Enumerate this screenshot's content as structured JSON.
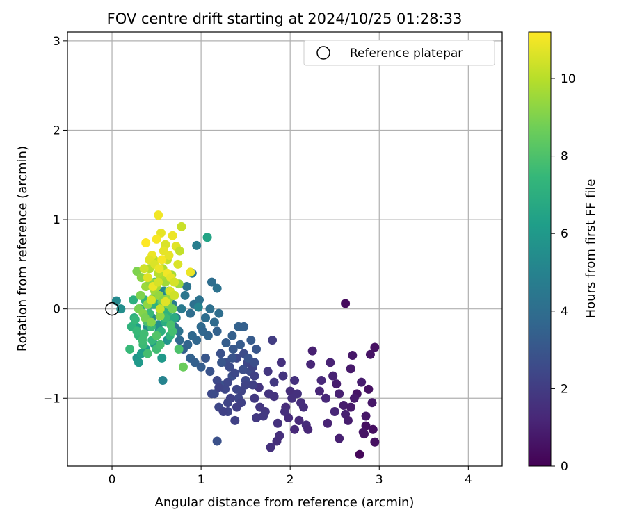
{
  "chart_data": {
    "type": "scatter",
    "title": "FOV centre drift starting at 2024/10/25 01:28:33",
    "xlabel": "Angular distance from reference (arcmin)",
    "ylabel": "Rotation from reference (arcmin)",
    "xlim": [
      -0.5,
      4.38
    ],
    "ylim": [
      -1.76,
      3.1
    ],
    "xticks": [
      0,
      1,
      2,
      3,
      4
    ],
    "yticks": [
      -1,
      0,
      1,
      2,
      3
    ],
    "xtick_labels": [
      "0",
      "1",
      "2",
      "3",
      "4"
    ],
    "ytick_labels": [
      "−1",
      "0",
      "1",
      "2",
      "3"
    ],
    "grid": true,
    "legend": {
      "location": "upper right",
      "entries": [
        "Reference platepar"
      ]
    },
    "reference_point": {
      "x": 0,
      "y": 0,
      "label": "Reference platepar"
    },
    "colorbar": {
      "label": "Hours from first FF file",
      "colormap": "viridis",
      "range": [
        0,
        11.2
      ],
      "ticks": [
        0,
        2,
        4,
        6,
        8,
        10
      ],
      "tick_labels": [
        "0",
        "2",
        "4",
        "6",
        "8",
        "10"
      ]
    },
    "colormap_stops": [
      "#440154",
      "#482878",
      "#3e4989",
      "#31688e",
      "#26828e",
      "#1f9e89",
      "#35b779",
      "#6ece58",
      "#b5de2b",
      "#fde725"
    ],
    "series": [
      {
        "x": [
          2.62,
          2.78,
          2.95,
          2.9,
          2.7,
          2.85,
          2.52,
          2.55,
          2.95,
          2.82,
          2.68,
          2.6,
          2.42,
          2.25,
          2.23,
          2.48,
          2.68,
          2.92,
          2.75,
          2.8,
          2.88,
          2.85,
          2.93,
          2.62,
          2.4,
          2.33,
          2.15,
          2.1,
          2.35,
          2.5,
          2.55,
          2.72,
          2.65,
          2.83,
          2.45
        ],
        "y": [
          0.06,
          -1.63,
          -0.43,
          -0.51,
          -0.52,
          -1.31,
          -0.84,
          -1.45,
          -1.49,
          -1.38,
          -0.67,
          -1.08,
          -1.28,
          -0.47,
          -0.62,
          -0.75,
          -1.1,
          -1.05,
          -0.95,
          -0.82,
          -0.9,
          -1.2,
          -1.35,
          -1.18,
          -1.0,
          -0.92,
          -1.1,
          -1.25,
          -0.8,
          -1.15,
          -0.95,
          -1.0,
          -1.25,
          -1.4,
          -0.6
        ],
        "hours": [
          0.3,
          0.2,
          0.5,
          0.6,
          0.7,
          0.4,
          0.9,
          1.0,
          0.5,
          0.6,
          0.8,
          0.9,
          1.1,
          1.0,
          1.2,
          1.1,
          0.8,
          0.7,
          0.6,
          0.9,
          0.5,
          0.7,
          0.4,
          1.0,
          1.3,
          1.2,
          1.5,
          1.4,
          1.3,
          1.2,
          1.0,
          0.8,
          0.9,
          0.6,
          1.1
        ]
      },
      {
        "x": [
          1.75,
          1.8,
          1.65,
          1.6,
          1.9,
          2.0,
          1.95,
          2.05,
          1.85,
          1.78,
          1.98,
          2.08,
          2.12,
          1.72,
          1.7,
          1.82,
          1.92,
          2.02,
          2.18,
          1.88,
          1.62,
          1.66,
          1.76,
          1.58,
          2.1,
          2.2,
          1.86,
          1.94,
          1.82,
          2.05
        ],
        "y": [
          -0.7,
          -0.35,
          -0.88,
          -1.0,
          -0.6,
          -0.92,
          -1.1,
          -1.35,
          -1.48,
          -1.55,
          -1.22,
          -0.95,
          -1.05,
          -1.15,
          -1.2,
          -0.82,
          -0.75,
          -1.0,
          -1.3,
          -1.42,
          -1.22,
          -1.1,
          -0.95,
          -0.85,
          -1.25,
          -1.35,
          -1.28,
          -1.15,
          -0.98,
          -0.8
        ],
        "hours": [
          1.8,
          2.0,
          1.7,
          1.9,
          1.6,
          1.5,
          1.4,
          1.3,
          1.5,
          1.6,
          1.4,
          1.6,
          1.5,
          1.8,
          1.9,
          1.9,
          1.7,
          1.6,
          1.4,
          1.5,
          1.9,
          1.8,
          1.7,
          2.1,
          1.3,
          1.2,
          1.6,
          1.5,
          1.7,
          1.6
        ]
      },
      {
        "x": [
          1.18,
          1.12,
          1.2,
          1.3,
          1.38,
          1.42,
          1.45,
          1.5,
          1.55,
          1.35,
          1.25,
          1.15,
          1.1,
          1.05,
          1.22,
          1.28,
          1.32,
          1.4,
          1.48,
          1.52,
          1.58,
          1.6,
          1.5,
          1.45,
          1.4,
          1.33,
          1.27,
          1.18,
          1.23,
          1.36,
          1.44,
          1.53,
          1.47,
          1.38,
          1.3,
          1.2,
          1.28,
          1.35,
          1.42,
          1.15,
          1.48,
          1.56,
          1.62,
          1.3,
          1.25,
          1.4,
          1.6,
          1.18,
          1.35
        ],
        "y": [
          -1.48,
          -0.95,
          -1.1,
          -1.15,
          -1.25,
          -1.0,
          -0.92,
          -0.8,
          -0.7,
          -0.75,
          -0.85,
          -0.95,
          -0.7,
          -0.55,
          -0.5,
          -0.6,
          -0.65,
          -0.55,
          -0.5,
          -0.6,
          -0.65,
          -0.75,
          -0.85,
          -1.05,
          -1.1,
          -1.0,
          -0.9,
          -0.8,
          -0.6,
          -0.45,
          -0.4,
          -0.55,
          -0.68,
          -0.72,
          -0.82,
          -0.88,
          -0.38,
          -0.3,
          -0.2,
          -0.15,
          -0.2,
          -0.35,
          -0.45,
          -1.05,
          -1.15,
          -0.9,
          -0.6,
          -0.25,
          -0.55
        ],
        "hours": [
          2.8,
          2.5,
          2.4,
          2.3,
          2.2,
          2.4,
          2.3,
          2.5,
          2.6,
          2.7,
          2.8,
          2.6,
          2.9,
          3.0,
          2.8,
          2.7,
          2.6,
          2.5,
          2.6,
          2.4,
          2.3,
          2.2,
          2.3,
          2.2,
          2.1,
          2.2,
          2.4,
          2.5,
          3.0,
          3.1,
          3.2,
          2.9,
          2.7,
          2.5,
          2.4,
          2.3,
          3.3,
          3.4,
          3.5,
          3.6,
          3.4,
          3.2,
          3.0,
          2.3,
          2.2,
          2.4,
          2.7,
          3.5,
          2.9
        ]
      },
      {
        "x": [
          0.9,
          0.95,
          1.0,
          1.05,
          1.1,
          1.15,
          0.85,
          0.8,
          0.75,
          0.7,
          0.88,
          0.92,
          0.98,
          1.02,
          1.08,
          1.12,
          0.95,
          0.9,
          0.82,
          0.78,
          1.18,
          1.2,
          0.72,
          0.68,
          0.65,
          0.88,
          0.93,
          1.0,
          0.76,
          0.84
        ],
        "y": [
          -0.3,
          -0.35,
          -0.2,
          -0.1,
          0.0,
          -0.15,
          -0.4,
          -0.45,
          -0.25,
          -0.2,
          -0.05,
          0.05,
          0.1,
          -0.25,
          -0.3,
          0.3,
          0.71,
          0.4,
          0.15,
          0.0,
          0.23,
          -0.05,
          -0.1,
          0.05,
          -0.15,
          -0.55,
          -0.6,
          -0.65,
          -0.35,
          0.25
        ],
        "hours": [
          3.8,
          3.7,
          3.9,
          4.0,
          4.1,
          3.9,
          3.6,
          3.5,
          4.2,
          4.3,
          4.0,
          4.1,
          4.2,
          3.7,
          3.6,
          4.0,
          4.8,
          4.5,
          4.4,
          4.6,
          4.2,
          4.0,
          4.5,
          4.7,
          4.4,
          3.5,
          3.4,
          3.3,
          3.8,
          4.3
        ]
      },
      {
        "x": [
          0.05,
          0.1,
          0.28,
          0.3,
          0.35,
          0.4,
          0.45,
          0.5,
          0.55,
          0.6,
          0.65,
          0.58,
          0.48,
          0.38,
          0.33,
          0.43,
          0.53,
          0.62,
          0.27,
          0.57,
          1.07,
          0.97,
          0.56,
          0.44,
          0.52
        ],
        "y": [
          0.09,
          0.0,
          -0.55,
          -0.6,
          -0.3,
          -0.2,
          -0.1,
          0.05,
          -0.05,
          0.1,
          0.15,
          0.2,
          -0.4,
          -0.45,
          -0.5,
          -0.15,
          -0.25,
          -0.35,
          -0.2,
          -0.8,
          0.8,
          0.02,
          -0.55,
          0.05,
          -0.18
        ],
        "hours": [
          5.3,
          5.5,
          5.8,
          6.0,
          5.7,
          5.5,
          5.4,
          5.6,
          5.5,
          5.3,
          5.2,
          5.1,
          5.9,
          6.1,
          6.2,
          5.6,
          5.7,
          5.8,
          6.3,
          5.0,
          6.5,
          5.0,
          6.0,
          5.9,
          5.6
        ]
      },
      {
        "x": [
          0.2,
          0.22,
          0.25,
          0.3,
          0.35,
          0.4,
          0.45,
          0.5,
          0.55,
          0.6,
          0.65,
          0.7,
          0.32,
          0.37,
          0.42,
          0.47,
          0.52,
          0.57,
          0.62,
          0.28,
          0.24,
          0.34,
          0.44,
          0.54,
          0.64,
          0.38,
          0.48,
          0.58,
          0.8,
          0.75,
          0.68,
          0.3,
          0.4,
          0.5,
          0.6,
          0.26,
          0.36,
          0.46,
          0.56,
          0.66
        ],
        "y": [
          -0.45,
          -0.2,
          -0.1,
          -0.3,
          -0.4,
          -0.5,
          -0.35,
          -0.45,
          -0.25,
          -0.15,
          -0.3,
          -0.1,
          0.0,
          0.1,
          -0.05,
          0.05,
          0.15,
          0.0,
          -0.05,
          -0.25,
          0.1,
          -0.35,
          -0.2,
          -0.4,
          0.2,
          0.25,
          0.3,
          0.35,
          -0.65,
          -0.45,
          -0.25,
          0.0,
          -0.15,
          -0.3,
          -0.1,
          -0.12,
          -0.28,
          0.12,
          0.08,
          -0.18
        ],
        "hours": [
          7.5,
          7.2,
          7.0,
          7.3,
          7.6,
          7.8,
          7.4,
          7.7,
          7.1,
          6.9,
          7.2,
          6.8,
          7.0,
          7.3,
          7.5,
          7.1,
          7.4,
          6.9,
          7.2,
          7.5,
          7.0,
          7.7,
          7.6,
          7.8,
          8.0,
          8.2,
          8.4,
          8.3,
          8.6,
          8.0,
          7.8,
          7.5,
          7.9,
          8.1,
          7.6,
          7.4,
          7.7,
          8.2,
          8.5,
          7.9
        ]
      },
      {
        "x": [
          0.28,
          0.33,
          0.38,
          0.43,
          0.48,
          0.53,
          0.58,
          0.63,
          0.68,
          0.3,
          0.35,
          0.4,
          0.45,
          0.5,
          0.55,
          0.6,
          0.65,
          0.7,
          0.42,
          0.52,
          0.62,
          0.32,
          0.47,
          0.57,
          0.37,
          0.75,
          0.67,
          0.44,
          0.54,
          0.64
        ],
        "y": [
          0.42,
          0.35,
          0.25,
          0.3,
          0.2,
          0.15,
          0.1,
          0.05,
          0.0,
          0.0,
          -0.05,
          0.05,
          0.1,
          0.25,
          0.35,
          0.3,
          0.2,
          0.15,
          0.45,
          0.4,
          0.55,
          0.15,
          0.55,
          0.45,
          -0.1,
          0.28,
          0.38,
          -0.15,
          -0.08,
          0.12
        ],
        "hours": [
          9.0,
          9.2,
          9.5,
          9.3,
          9.6,
          9.4,
          9.1,
          9.0,
          8.8,
          8.9,
          9.1,
          9.3,
          9.5,
          9.7,
          9.8,
          9.6,
          9.4,
          9.2,
          9.9,
          10.0,
          10.2,
          9.0,
          10.1,
          9.9,
          8.9,
          9.5,
          9.7,
          9.1,
          9.3,
          9.5
        ]
      },
      {
        "x": [
          0.52,
          0.55,
          0.6,
          0.68,
          0.72,
          0.78,
          0.58,
          0.5,
          0.45,
          0.38,
          0.42,
          0.48,
          0.53,
          0.62,
          0.66,
          0.7,
          0.74,
          0.36,
          0.4,
          0.46,
          0.56,
          0.64,
          0.76,
          0.52,
          0.88,
          0.65,
          0.7,
          0.44,
          0.6,
          0.54
        ],
        "y": [
          1.05,
          0.85,
          0.72,
          0.82,
          0.7,
          0.92,
          0.65,
          0.78,
          0.6,
          0.74,
          0.55,
          0.5,
          0.45,
          0.4,
          0.35,
          0.3,
          0.5,
          0.45,
          0.35,
          0.25,
          0.55,
          0.6,
          0.65,
          0.3,
          0.41,
          0.2,
          0.15,
          0.1,
          0.08,
          0.0
        ],
        "hours": [
          11.0,
          10.8,
          10.6,
          10.9,
          10.7,
          10.3,
          10.8,
          11.1,
          10.9,
          11.2,
          10.7,
          10.6,
          10.9,
          11.0,
          10.8,
          10.5,
          10.6,
          10.4,
          10.7,
          10.9,
          11.1,
          10.8,
          10.2,
          10.5,
          10.9,
          10.6,
          10.4,
          10.5,
          10.7,
          10.3
        ]
      }
    ]
  }
}
